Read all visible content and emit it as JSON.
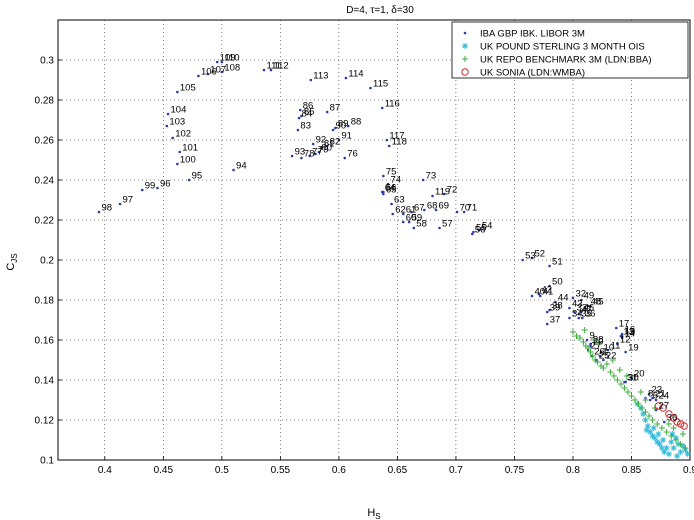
{
  "chart_data": {
    "type": "scatter",
    "title": "D=4, τ=1, δ=30",
    "xlabel": "H",
    "xlabel_sub": "S",
    "ylabel": "C",
    "ylabel_sub": "JS",
    "xlim": [
      0.36,
      0.9
    ],
    "ylim": [
      0.1,
      0.32
    ],
    "xticks": [
      0.4,
      0.45,
      0.5,
      0.55,
      0.6,
      0.65,
      0.7,
      0.75,
      0.8,
      0.85,
      0.9
    ],
    "xtick_labels": [
      "0.4",
      "0.45",
      "0.5",
      "0.55",
      "0.6",
      "0.65",
      "0.7",
      "0.75",
      "0.8",
      "0.85",
      "0.9"
    ],
    "yticks": [
      0.1,
      0.12,
      0.14,
      0.16,
      0.18,
      0.2,
      0.22,
      0.24,
      0.26,
      0.28,
      0.3
    ],
    "ytick_labels": [
      "0.1",
      "0.12",
      "0.14",
      "0.16",
      "0.18",
      "0.2",
      "0.22",
      "0.24",
      "0.26",
      "0.28",
      "0.3"
    ],
    "grid": true,
    "legend_position": "top-right",
    "series": [
      {
        "name": "IBA GBP IBK. LIBOR 3M",
        "marker": "dot",
        "color": "#2b3aa8",
        "points": [
          {
            "x": 0.395,
            "y": 0.224,
            "label": "98"
          },
          {
            "x": 0.413,
            "y": 0.228,
            "label": "97"
          },
          {
            "x": 0.432,
            "y": 0.235,
            "label": "99"
          },
          {
            "x": 0.445,
            "y": 0.236,
            "label": "96"
          },
          {
            "x": 0.472,
            "y": 0.24,
            "label": "95"
          },
          {
            "x": 0.462,
            "y": 0.248,
            "label": "100"
          },
          {
            "x": 0.464,
            "y": 0.254,
            "label": "101"
          },
          {
            "x": 0.458,
            "y": 0.261,
            "label": "102"
          },
          {
            "x": 0.453,
            "y": 0.267,
            "label": "103"
          },
          {
            "x": 0.454,
            "y": 0.273,
            "label": "104"
          },
          {
            "x": 0.462,
            "y": 0.284,
            "label": "105"
          },
          {
            "x": 0.48,
            "y": 0.292,
            "label": "106"
          },
          {
            "x": 0.488,
            "y": 0.293,
            "label": "107"
          },
          {
            "x": 0.5,
            "y": 0.294,
            "label": "108"
          },
          {
            "x": 0.496,
            "y": 0.299,
            "label": "109"
          },
          {
            "x": 0.5,
            "y": 0.299,
            "label": "110"
          },
          {
            "x": 0.536,
            "y": 0.295,
            "label": "111"
          },
          {
            "x": 0.542,
            "y": 0.295,
            "label": "112"
          },
          {
            "x": 0.576,
            "y": 0.29,
            "label": "113"
          },
          {
            "x": 0.606,
            "y": 0.291,
            "label": "114"
          },
          {
            "x": 0.627,
            "y": 0.286,
            "label": "115"
          },
          {
            "x": 0.637,
            "y": 0.276,
            "label": "116"
          },
          {
            "x": 0.641,
            "y": 0.26,
            "label": "117"
          },
          {
            "x": 0.643,
            "y": 0.257,
            "label": "118"
          },
          {
            "x": 0.68,
            "y": 0.232,
            "label": "119"
          },
          {
            "x": 0.51,
            "y": 0.245,
            "label": "94"
          },
          {
            "x": 0.56,
            "y": 0.252,
            "label": "93"
          },
          {
            "x": 0.578,
            "y": 0.258,
            "label": "92"
          },
          {
            "x": 0.565,
            "y": 0.265,
            "label": "83"
          },
          {
            "x": 0.566,
            "y": 0.271,
            "label": "84"
          },
          {
            "x": 0.568,
            "y": 0.272,
            "label": "85"
          },
          {
            "x": 0.567,
            "y": 0.275,
            "label": "86"
          },
          {
            "x": 0.59,
            "y": 0.274,
            "label": "87"
          },
          {
            "x": 0.608,
            "y": 0.267,
            "label": "88"
          },
          {
            "x": 0.597,
            "y": 0.266,
            "label": "89"
          },
          {
            "x": 0.595,
            "y": 0.265,
            "label": "90"
          },
          {
            "x": 0.6,
            "y": 0.26,
            "label": "91"
          },
          {
            "x": 0.59,
            "y": 0.257,
            "label": "82"
          },
          {
            "x": 0.585,
            "y": 0.256,
            "label": "81"
          },
          {
            "x": 0.583,
            "y": 0.254,
            "label": "80"
          },
          {
            "x": 0.58,
            "y": 0.253,
            "label": "79"
          },
          {
            "x": 0.568,
            "y": 0.251,
            "label": "78"
          },
          {
            "x": 0.575,
            "y": 0.252,
            "label": "77"
          },
          {
            "x": 0.605,
            "y": 0.251,
            "label": "76"
          },
          {
            "x": 0.638,
            "y": 0.242,
            "label": "75"
          },
          {
            "x": 0.642,
            "y": 0.238,
            "label": "74"
          },
          {
            "x": 0.672,
            "y": 0.24,
            "label": "73"
          },
          {
            "x": 0.69,
            "y": 0.233,
            "label": "72"
          },
          {
            "x": 0.707,
            "y": 0.224,
            "label": "71"
          },
          {
            "x": 0.701,
            "y": 0.224,
            "label": "70"
          },
          {
            "x": 0.683,
            "y": 0.225,
            "label": "69"
          },
          {
            "x": 0.673,
            "y": 0.225,
            "label": "68"
          },
          {
            "x": 0.662,
            "y": 0.224,
            "label": "67"
          },
          {
            "x": 0.638,
            "y": 0.234,
            "label": "66"
          },
          {
            "x": 0.638,
            "y": 0.233,
            "label": "65"
          },
          {
            "x": 0.637,
            "y": 0.234,
            "label": "64"
          },
          {
            "x": 0.645,
            "y": 0.228,
            "label": "63"
          },
          {
            "x": 0.646,
            "y": 0.223,
            "label": "62"
          },
          {
            "x": 0.655,
            "y": 0.223,
            "label": "61"
          },
          {
            "x": 0.655,
            "y": 0.219,
            "label": "60"
          },
          {
            "x": 0.66,
            "y": 0.219,
            "label": "59"
          },
          {
            "x": 0.664,
            "y": 0.216,
            "label": "58"
          },
          {
            "x": 0.686,
            "y": 0.216,
            "label": "57"
          },
          {
            "x": 0.714,
            "y": 0.213,
            "label": "56"
          },
          {
            "x": 0.715,
            "y": 0.214,
            "label": "55"
          },
          {
            "x": 0.72,
            "y": 0.215,
            "label": "54"
          },
          {
            "x": 0.757,
            "y": 0.2,
            "label": "53"
          },
          {
            "x": 0.765,
            "y": 0.201,
            "label": "52"
          },
          {
            "x": 0.78,
            "y": 0.197,
            "label": "51"
          },
          {
            "x": 0.78,
            "y": 0.187,
            "label": "50"
          },
          {
            "x": 0.765,
            "y": 0.182,
            "label": "40"
          },
          {
            "x": 0.772,
            "y": 0.182,
            "label": "41"
          },
          {
            "x": 0.771,
            "y": 0.183,
            "label": "42"
          },
          {
            "x": 0.797,
            "y": 0.176,
            "label": "43"
          },
          {
            "x": 0.785,
            "y": 0.179,
            "label": "44"
          },
          {
            "x": 0.815,
            "y": 0.177,
            "label": "45"
          },
          {
            "x": 0.807,
            "y": 0.174,
            "label": "46"
          },
          {
            "x": 0.805,
            "y": 0.173,
            "label": "47"
          },
          {
            "x": 0.813,
            "y": 0.177,
            "label": "48"
          },
          {
            "x": 0.807,
            "y": 0.18,
            "label": "49"
          },
          {
            "x": 0.78,
            "y": 0.175,
            "label": "38"
          },
          {
            "x": 0.778,
            "y": 0.174,
            "label": "39"
          },
          {
            "x": 0.778,
            "y": 0.168,
            "label": "37"
          },
          {
            "x": 0.8,
            "y": 0.181,
            "label": "32"
          },
          {
            "x": 0.801,
            "y": 0.174,
            "label": "33"
          },
          {
            "x": 0.797,
            "y": 0.171,
            "label": "34"
          },
          {
            "x": 0.805,
            "y": 0.171,
            "label": "35"
          },
          {
            "x": 0.808,
            "y": 0.171,
            "label": "36"
          },
          {
            "x": 0.837,
            "y": 0.166,
            "label": "17"
          },
          {
            "x": 0.842,
            "y": 0.163,
            "label": "16"
          },
          {
            "x": 0.842,
            "y": 0.162,
            "label": "15"
          },
          {
            "x": 0.842,
            "y": 0.161,
            "label": "14"
          },
          {
            "x": 0.841,
            "y": 0.162,
            "label": "13"
          },
          {
            "x": 0.838,
            "y": 0.158,
            "label": "12"
          },
          {
            "x": 0.83,
            "y": 0.155,
            "label": "11"
          },
          {
            "x": 0.824,
            "y": 0.154,
            "label": "10"
          },
          {
            "x": 0.812,
            "y": 0.16,
            "label": "9"
          },
          {
            "x": 0.815,
            "y": 0.157,
            "label": "29"
          },
          {
            "x": 0.815,
            "y": 0.158,
            "label": "28"
          },
          {
            "x": 0.813,
            "y": 0.155,
            "label": "27"
          },
          {
            "x": 0.816,
            "y": 0.152,
            "label": "26"
          },
          {
            "x": 0.82,
            "y": 0.15,
            "label": "25"
          },
          {
            "x": 0.823,
            "y": 0.152,
            "label": "1"
          },
          {
            "x": 0.826,
            "y": 0.15,
            "label": "22"
          },
          {
            "x": 0.845,
            "y": 0.154,
            "label": "19"
          },
          {
            "x": 0.85,
            "y": 0.141,
            "label": "20"
          },
          {
            "x": 0.845,
            "y": 0.139,
            "label": "30"
          },
          {
            "x": 0.844,
            "y": 0.139,
            "label": "31"
          },
          {
            "x": 0.865,
            "y": 0.133,
            "label": "23"
          },
          {
            "x": 0.868,
            "y": 0.131,
            "label": "21"
          },
          {
            "x": 0.862,
            "y": 0.131,
            "label": "8"
          },
          {
            "x": 0.866,
            "y": 0.13,
            "label": "6"
          },
          {
            "x": 0.871,
            "y": 0.13,
            "label": "24"
          },
          {
            "x": 0.871,
            "y": 0.125,
            "label": "27"
          },
          {
            "x": 0.878,
            "y": 0.119,
            "label": "36"
          }
        ]
      },
      {
        "name": "UK POUND STERLING 3 MONTH OIS",
        "marker": "asterisk",
        "color": "#2fb8d8",
        "points": [
          {
            "x": 0.86,
            "y": 0.123
          },
          {
            "x": 0.862,
            "y": 0.12
          },
          {
            "x": 0.864,
            "y": 0.117
          },
          {
            "x": 0.866,
            "y": 0.114
          },
          {
            "x": 0.868,
            "y": 0.112
          },
          {
            "x": 0.87,
            "y": 0.111
          },
          {
            "x": 0.872,
            "y": 0.109
          },
          {
            "x": 0.874,
            "y": 0.108
          },
          {
            "x": 0.876,
            "y": 0.106
          },
          {
            "x": 0.878,
            "y": 0.104
          },
          {
            "x": 0.88,
            "y": 0.106
          },
          {
            "x": 0.882,
            "y": 0.103
          },
          {
            "x": 0.884,
            "y": 0.109
          },
          {
            "x": 0.886,
            "y": 0.106
          },
          {
            "x": 0.888,
            "y": 0.111
          },
          {
            "x": 0.89,
            "y": 0.108
          },
          {
            "x": 0.892,
            "y": 0.104
          },
          {
            "x": 0.894,
            "y": 0.107
          },
          {
            "x": 0.896,
            "y": 0.105
          },
          {
            "x": 0.898,
            "y": 0.103
          },
          {
            "x": 0.855,
            "y": 0.128
          },
          {
            "x": 0.858,
            "y": 0.126
          },
          {
            "x": 0.863,
            "y": 0.115
          },
          {
            "x": 0.869,
            "y": 0.116
          },
          {
            "x": 0.873,
            "y": 0.113
          },
          {
            "x": 0.877,
            "y": 0.11
          },
          {
            "x": 0.885,
            "y": 0.113
          },
          {
            "x": 0.889,
            "y": 0.102
          }
        ]
      },
      {
        "name": "UK REPO BENCHMARK 3M (LDN:BBA)",
        "marker": "plus",
        "color": "#3cae3c",
        "points": [
          {
            "x": 0.8,
            "y": 0.164
          },
          {
            "x": 0.803,
            "y": 0.162
          },
          {
            "x": 0.806,
            "y": 0.161
          },
          {
            "x": 0.809,
            "y": 0.159
          },
          {
            "x": 0.811,
            "y": 0.157
          },
          {
            "x": 0.813,
            "y": 0.156
          },
          {
            "x": 0.815,
            "y": 0.154
          },
          {
            "x": 0.817,
            "y": 0.152
          },
          {
            "x": 0.819,
            "y": 0.15
          },
          {
            "x": 0.821,
            "y": 0.149
          },
          {
            "x": 0.824,
            "y": 0.147
          },
          {
            "x": 0.826,
            "y": 0.146
          },
          {
            "x": 0.829,
            "y": 0.148
          },
          {
            "x": 0.832,
            "y": 0.144
          },
          {
            "x": 0.835,
            "y": 0.142
          },
          {
            "x": 0.838,
            "y": 0.14
          },
          {
            "x": 0.841,
            "y": 0.138
          },
          {
            "x": 0.844,
            "y": 0.136
          },
          {
            "x": 0.847,
            "y": 0.134
          },
          {
            "x": 0.85,
            "y": 0.132
          },
          {
            "x": 0.853,
            "y": 0.13
          },
          {
            "x": 0.856,
            "y": 0.128
          },
          {
            "x": 0.859,
            "y": 0.126
          },
          {
            "x": 0.862,
            "y": 0.124
          },
          {
            "x": 0.865,
            "y": 0.122
          },
          {
            "x": 0.868,
            "y": 0.12
          },
          {
            "x": 0.872,
            "y": 0.118
          },
          {
            "x": 0.876,
            "y": 0.116
          },
          {
            "x": 0.88,
            "y": 0.114
          },
          {
            "x": 0.884,
            "y": 0.112
          },
          {
            "x": 0.888,
            "y": 0.11
          },
          {
            "x": 0.892,
            "y": 0.108
          },
          {
            "x": 0.896,
            "y": 0.106
          },
          {
            "x": 0.81,
            "y": 0.165
          },
          {
            "x": 0.822,
            "y": 0.158
          },
          {
            "x": 0.834,
            "y": 0.15
          },
          {
            "x": 0.846,
            "y": 0.142
          },
          {
            "x": 0.858,
            "y": 0.134
          },
          {
            "x": 0.87,
            "y": 0.126
          },
          {
            "x": 0.882,
            "y": 0.118
          },
          {
            "x": 0.894,
            "y": 0.113
          },
          {
            "x": 0.818,
            "y": 0.16
          },
          {
            "x": 0.84,
            "y": 0.145
          },
          {
            "x": 0.862,
            "y": 0.13
          },
          {
            "x": 0.886,
            "y": 0.116
          }
        ]
      },
      {
        "name": "UK SONIA (LDN:WMBA)",
        "marker": "circle",
        "color": "#d42a2a",
        "points": [
          {
            "x": 0.877,
            "y": 0.126
          },
          {
            "x": 0.882,
            "y": 0.123
          },
          {
            "x": 0.886,
            "y": 0.121
          },
          {
            "x": 0.889,
            "y": 0.119
          },
          {
            "x": 0.892,
            "y": 0.118
          },
          {
            "x": 0.873,
            "y": 0.127
          },
          {
            "x": 0.895,
            "y": 0.117
          }
        ]
      }
    ]
  }
}
